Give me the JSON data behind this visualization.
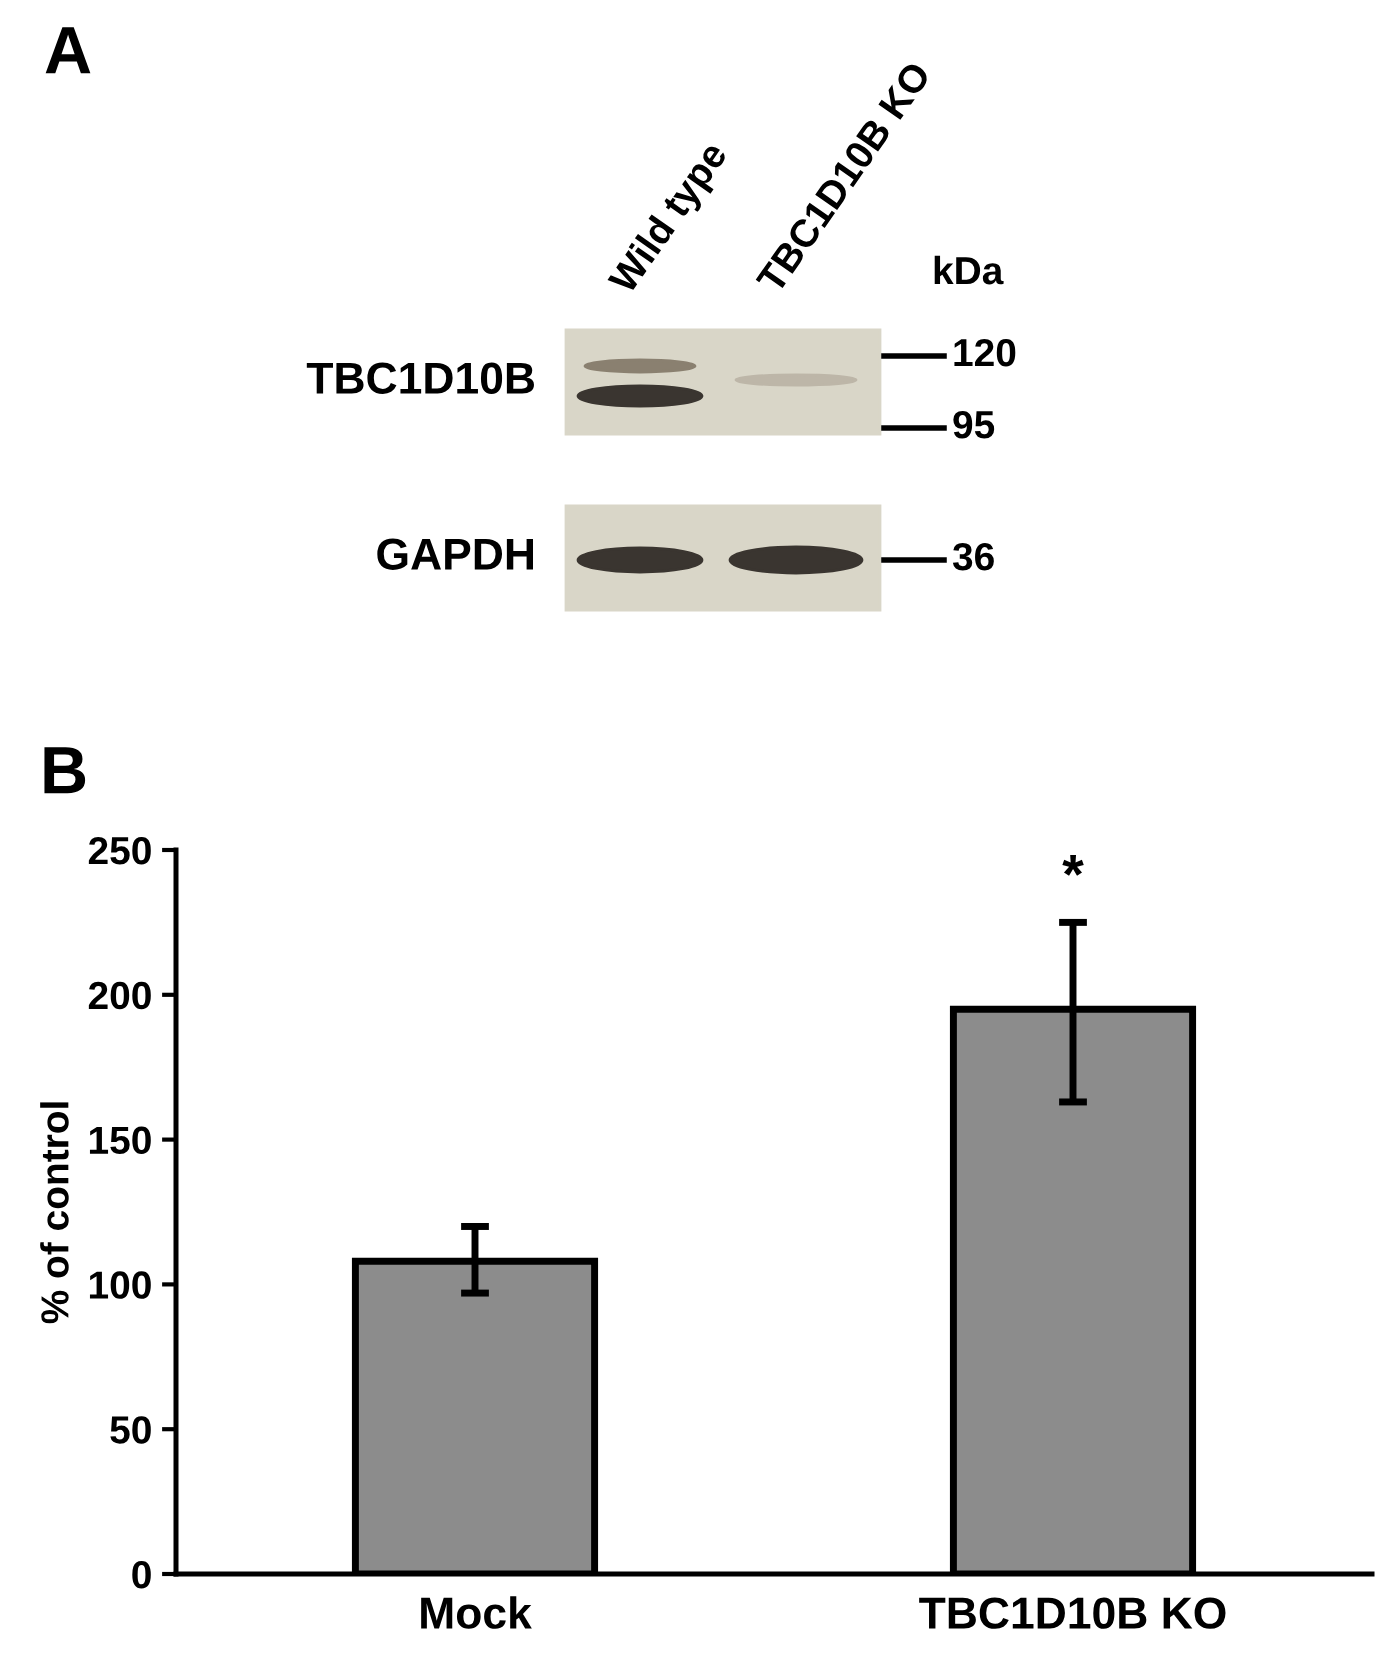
{
  "chart_data": [
    {
      "type": "other",
      "title": "A",
      "annotations": [
        "Wild type",
        "TBC1D10B KO",
        "kDa",
        "TBC1D10B",
        "GAPDH",
        "120",
        "95",
        "36"
      ]
    },
    {
      "type": "bar",
      "title": "B",
      "ylabel": "% of control",
      "categories": [
        "Mock",
        "TBC1D10B KO"
      ],
      "values": [
        108,
        195
      ],
      "errors": [
        [
          97,
          120
        ],
        [
          163,
          225
        ]
      ],
      "color": "#8c8c8c",
      "ylim": [
        0,
        250
      ],
      "yticks": [
        0,
        50,
        100,
        150,
        200,
        250
      ],
      "grid": false,
      "annotations": [
        "*"
      ]
    }
  ]
}
